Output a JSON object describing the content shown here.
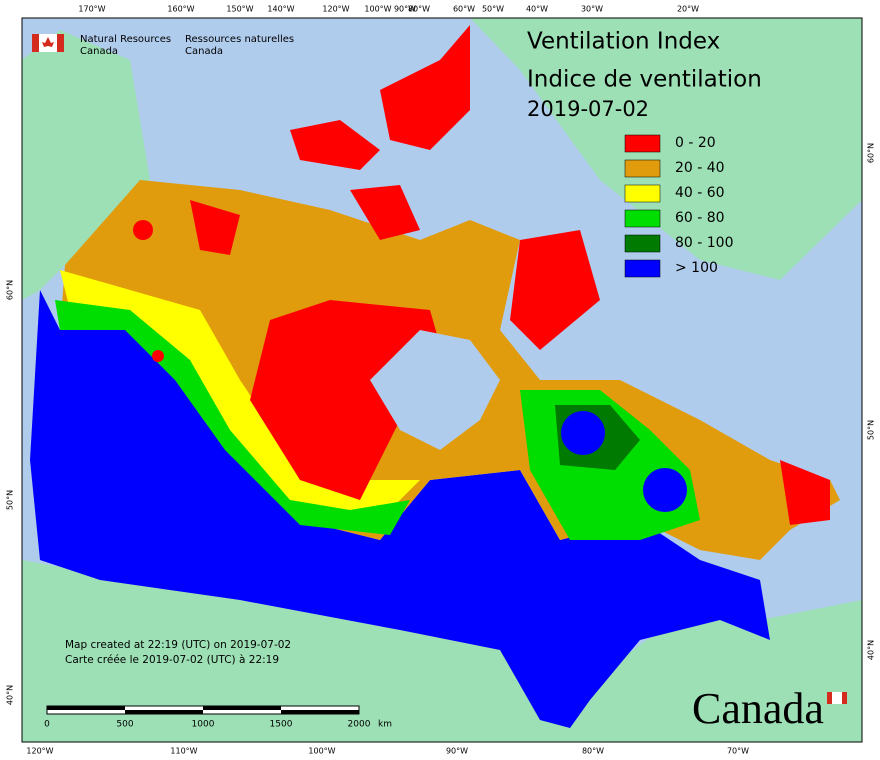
{
  "logo": {
    "en": [
      "Natural Resources",
      "Canada"
    ],
    "fr": [
      "Ressources naturelles",
      "Canada"
    ]
  },
  "title": [
    "Ventilation Index",
    "Indice de ventilation",
    "2019-07-02"
  ],
  "legend": [
    {
      "label": "0 - 20",
      "color": "#ff0000"
    },
    {
      "label": "20 - 40",
      "color": "#e09c0c"
    },
    {
      "label": "40 - 60",
      "color": "#ffff00"
    },
    {
      "label": "60 - 80",
      "color": "#00dd00"
    },
    {
      "label": "80 - 100",
      "color": "#007a00"
    },
    {
      "label": "> 100",
      "color": "#0000ff"
    }
  ],
  "graticule": {
    "top": [
      "170°W",
      "160°W",
      "150°W",
      "140°W",
      "120°W",
      "100°W",
      "90°W",
      "80°W",
      "60°W",
      "50°W",
      "40°W",
      "30°W",
      "20°W"
    ],
    "bottom": [
      "120°W",
      "110°W",
      "100°W",
      "90°W",
      "80°W",
      "70°W"
    ],
    "left": [
      "60°N",
      "50°N",
      "40°N"
    ],
    "right": [
      "60°N",
      "50°N",
      "40°N"
    ]
  },
  "notes": [
    "Map created at 22:19 (UTC) on 2019-07-02",
    "Carte créée le 2019-07-02 (UTC) à 22:19"
  ],
  "scale": {
    "labels": [
      "0",
      "500",
      "1000",
      "1500",
      "2000"
    ],
    "unit": "km"
  },
  "wordmark": "Canada"
}
